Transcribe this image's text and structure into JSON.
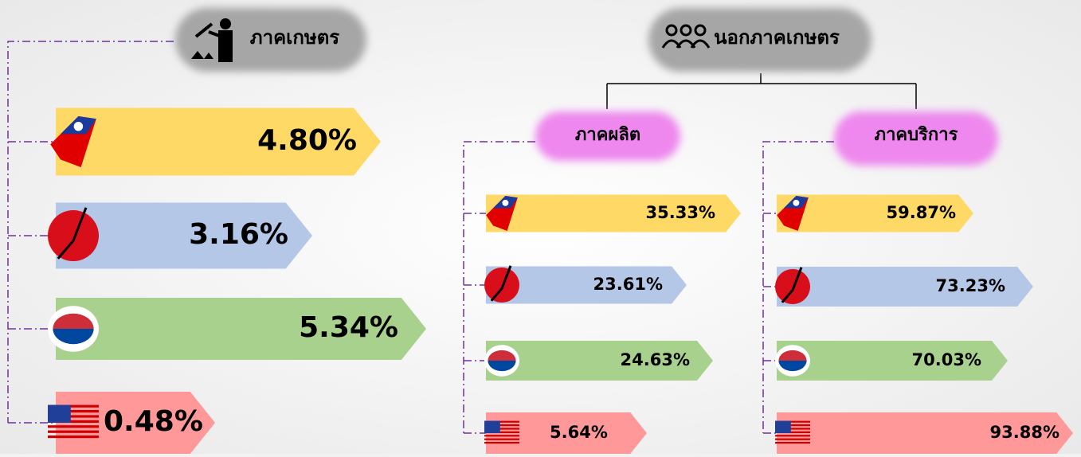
{
  "agriculture": {
    "title": "ภาคเกษตร",
    "items": [
      "4.80%",
      "3.16%",
      "5.34%",
      "0.48%"
    ]
  },
  "non_agriculture": {
    "title": "นอกภาคเกษตร",
    "groups": [
      {
        "title": "ภาคผลิต",
        "items": [
          "35.33%",
          "23.61%",
          "24.63%",
          "5.64%"
        ]
      },
      {
        "title": "ภาคบริการ",
        "items": [
          "59.87%",
          "73.23%",
          "70.03%",
          "93.88%"
        ]
      }
    ]
  }
}
